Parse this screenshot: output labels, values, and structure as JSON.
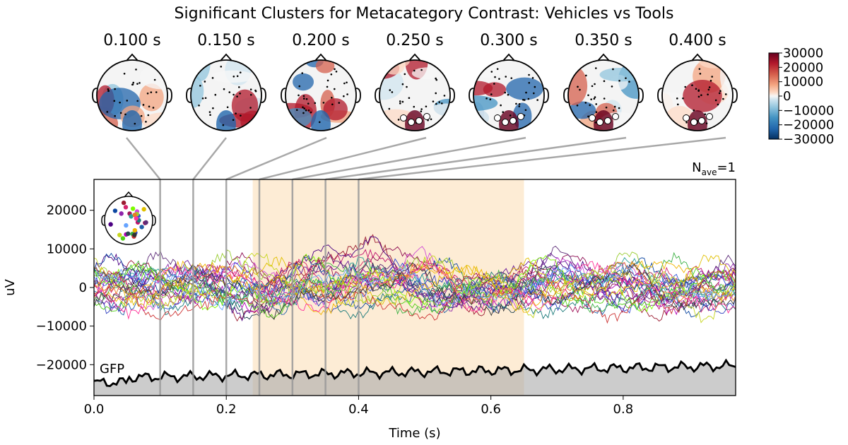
{
  "chart_data": {
    "type": "line",
    "title": "Significant Clusters for Metacategory Contrast: Vehicles vs Tools",
    "xlabel": "Time (s)",
    "ylabel": "uV",
    "xlim": [
      0.0,
      0.97
    ],
    "ylim": [
      -28000,
      28000
    ],
    "xticks": [
      0.0,
      0.2,
      0.4,
      0.6,
      0.8
    ],
    "xtick_labels": [
      "0.0",
      "0.2",
      "0.4",
      "0.6",
      "0.8"
    ],
    "yticks": [
      20000,
      10000,
      0,
      -10000,
      -20000
    ],
    "ytick_labels": [
      "20000",
      "10000",
      "0",
      "−10000",
      "−20000"
    ],
    "nave_main": "N",
    "nave_sub": "ave",
    "nave_value": "=1",
    "gfp_label": "GFP",
    "significant_window": [
      0.24,
      0.65
    ],
    "n_channels": 30,
    "topomap_times": [
      0.1,
      0.15,
      0.2,
      0.25,
      0.3,
      0.35,
      0.4
    ],
    "topomap_labels": [
      "0.100 s",
      "0.150 s",
      "0.200 s",
      "0.250 s",
      "0.300 s",
      "0.350 s",
      "0.400 s"
    ],
    "colorbar": {
      "range": [
        -30000,
        30000
      ],
      "ticks": [
        30000,
        20000,
        10000,
        0,
        -10000,
        -20000,
        -30000
      ],
      "tick_labels": [
        "30000",
        "20000",
        "10000",
        "0",
        "−10000",
        "−20000",
        "−30000"
      ],
      "cmap": "RdBu_r"
    }
  }
}
